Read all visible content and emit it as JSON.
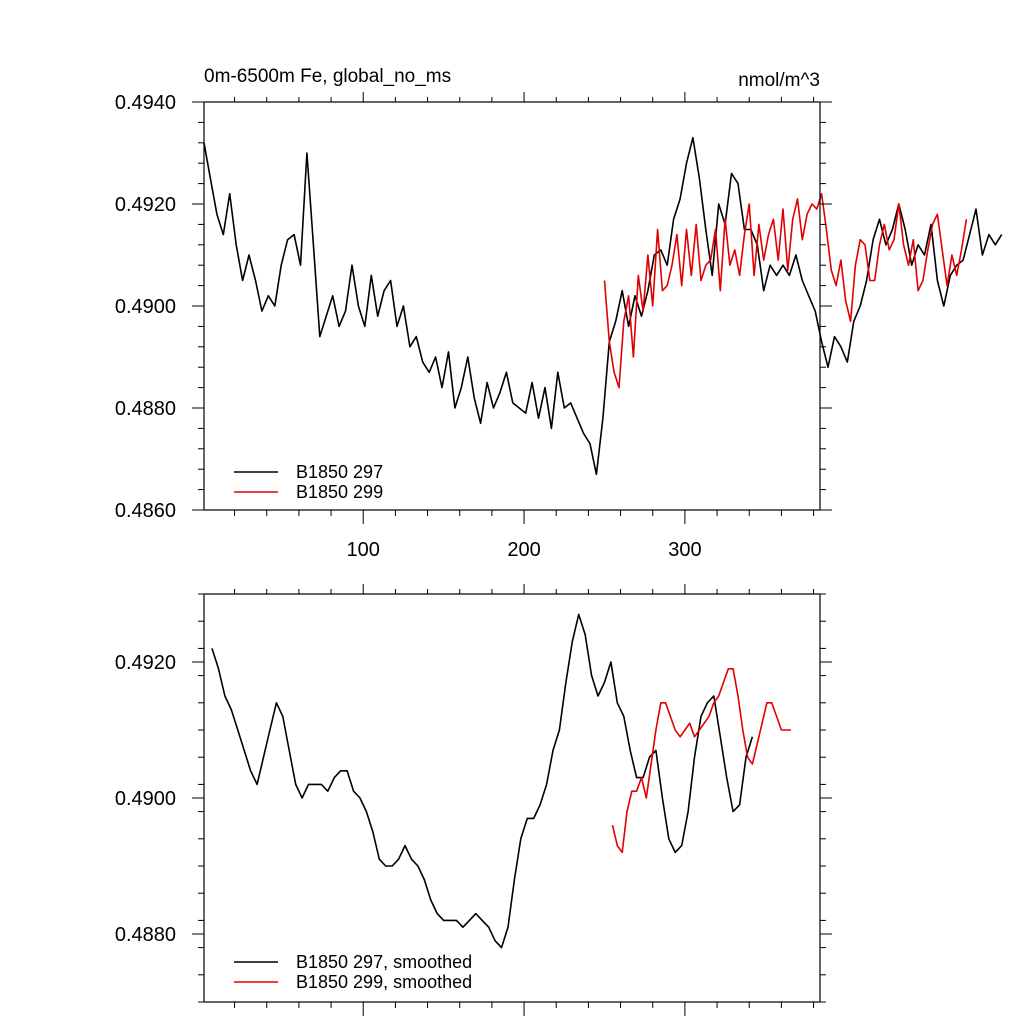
{
  "chart_data": [
    {
      "type": "line",
      "title": "0m-6500m Fe, global_no_ms",
      "units": "nmol/m^3",
      "xlim": [
        1,
        384
      ],
      "ylim": [
        0.486,
        0.494
      ],
      "x_tick_labels": [
        "100",
        "200",
        "300"
      ],
      "x_ticks": [
        100,
        200,
        300
      ],
      "y_tick_labels": [
        "0.4940",
        "0.4920",
        "0.4900",
        "0.4880",
        "0.4860"
      ],
      "y_ticks": [
        0.494,
        0.492,
        0.49,
        0.488,
        0.486
      ],
      "legend_position": "bottom-left",
      "series": [
        {
          "name": "B1850 297",
          "color": "#000000",
          "x_start": 1,
          "x_step": 4,
          "values": [
            0.4932,
            0.4925,
            0.4918,
            0.4914,
            0.4922,
            0.4912,
            0.4905,
            0.491,
            0.4905,
            0.4899,
            0.4902,
            0.49,
            0.4908,
            0.4913,
            0.4914,
            0.4908,
            0.493,
            0.4912,
            0.4894,
            0.4898,
            0.4902,
            0.4896,
            0.4899,
            0.4908,
            0.49,
            0.4896,
            0.4906,
            0.4898,
            0.4903,
            0.4905,
            0.4896,
            0.49,
            0.4892,
            0.4894,
            0.4889,
            0.4887,
            0.489,
            0.4884,
            0.4891,
            0.488,
            0.4884,
            0.489,
            0.4882,
            0.4877,
            0.4885,
            0.488,
            0.4883,
            0.4887,
            0.4881,
            0.488,
            0.4879,
            0.4885,
            0.4878,
            0.4884,
            0.4876,
            0.4887,
            0.488,
            0.4881,
            0.4878,
            0.4875,
            0.4873,
            0.4867,
            0.4878,
            0.4893,
            0.4897,
            0.4903,
            0.4896,
            0.4902,
            0.4898,
            0.4903,
            0.491,
            0.4911,
            0.4908,
            0.4917,
            0.4921,
            0.4928,
            0.4933,
            0.4925,
            0.4915,
            0.4906,
            0.492,
            0.4916,
            0.4926,
            0.4924,
            0.4915,
            0.4915,
            0.4912,
            0.4903,
            0.4908,
            0.4906,
            0.4908,
            0.4906,
            0.491,
            0.4905,
            0.4902,
            0.4899,
            0.4893,
            0.4888,
            0.4894,
            0.4892,
            0.4889,
            0.4897,
            0.49,
            0.4905,
            0.4913,
            0.4917,
            0.4912,
            0.4915,
            0.492,
            0.4915,
            0.4908,
            0.4912,
            0.491,
            0.4916,
            0.4905,
            0.49,
            0.4906,
            0.4908,
            0.4909,
            0.4914,
            0.4919,
            0.491,
            0.4914,
            0.4912,
            0.4914
          ]
        },
        {
          "name": "B1850 299",
          "color": "#e00000",
          "x_start": 250,
          "x_step": 3,
          "values": [
            0.4905,
            0.4893,
            0.4887,
            0.4884,
            0.4897,
            0.4902,
            0.489,
            0.4906,
            0.4899,
            0.491,
            0.49,
            0.4915,
            0.4903,
            0.4904,
            0.4908,
            0.4914,
            0.4904,
            0.4915,
            0.4906,
            0.4916,
            0.4905,
            0.4908,
            0.4909,
            0.4915,
            0.4903,
            0.4917,
            0.4908,
            0.4911,
            0.4906,
            0.4914,
            0.492,
            0.4906,
            0.4916,
            0.4909,
            0.4914,
            0.4917,
            0.4909,
            0.4919,
            0.4907,
            0.4917,
            0.4921,
            0.4913,
            0.4918,
            0.492,
            0.4919,
            0.4922,
            0.4915,
            0.4907,
            0.4904,
            0.4909,
            0.4901,
            0.4897,
            0.4908,
            0.4913,
            0.4912,
            0.4905,
            0.4905,
            0.4912,
            0.4916,
            0.4911,
            0.4913,
            0.492,
            0.4912,
            0.4908,
            0.4913,
            0.4903,
            0.4905,
            0.4911,
            0.4916,
            0.4918,
            0.4911,
            0.4904,
            0.491,
            0.4906,
            0.4911,
            0.4917
          ]
        }
      ]
    },
    {
      "type": "line",
      "xlim": [
        1,
        384
      ],
      "ylim": [
        0.487,
        0.493
      ],
      "x_ticks": [
        100,
        200,
        300
      ],
      "y_tick_labels": [
        "0.4920",
        "0.4900",
        "0.4880"
      ],
      "y_ticks": [
        0.492,
        0.49,
        0.488
      ],
      "legend_position": "bottom-left",
      "series": [
        {
          "name": "B1850 297, smoothed",
          "color": "#000000",
          "x_start": 6,
          "x_step": 4,
          "values": [
            0.4922,
            0.4919,
            0.4915,
            0.4913,
            0.491,
            0.4907,
            0.4904,
            0.4902,
            0.4906,
            0.491,
            0.4914,
            0.4912,
            0.4907,
            0.4902,
            0.49,
            0.4902,
            0.4902,
            0.4902,
            0.4901,
            0.4903,
            0.4904,
            0.4904,
            0.4901,
            0.49,
            0.4898,
            0.4895,
            0.4891,
            0.489,
            0.489,
            0.4891,
            0.4893,
            0.4891,
            0.489,
            0.4888,
            0.4885,
            0.4883,
            0.4882,
            0.4882,
            0.4882,
            0.4881,
            0.4882,
            0.4883,
            0.4882,
            0.4881,
            0.4879,
            0.4878,
            0.4881,
            0.4888,
            0.4894,
            0.4897,
            0.4897,
            0.4899,
            0.4902,
            0.4907,
            0.491,
            0.4917,
            0.4923,
            0.4927,
            0.4924,
            0.4918,
            0.4915,
            0.4917,
            0.492,
            0.4914,
            0.4912,
            0.4907,
            0.4903,
            0.4903,
            0.4906,
            0.4907,
            0.49,
            0.4894,
            0.4892,
            0.4893,
            0.4898,
            0.4906,
            0.4912,
            0.4914,
            0.4915,
            0.4909,
            0.4903,
            0.4898,
            0.4899,
            0.4906,
            0.4909
          ]
        },
        {
          "name": "B1850 299, smoothed",
          "color": "#e00000",
          "x_start": 255,
          "x_step": 3,
          "values": [
            0.4896,
            0.4893,
            0.4892,
            0.4898,
            0.4901,
            0.4901,
            0.4903,
            0.49,
            0.4905,
            0.491,
            0.4914,
            0.4914,
            0.4912,
            0.491,
            0.4909,
            0.491,
            0.4911,
            0.4909,
            0.491,
            0.4911,
            0.4912,
            0.4914,
            0.4915,
            0.4917,
            0.4919,
            0.4919,
            0.4915,
            0.491,
            0.4906,
            0.4905,
            0.4908,
            0.4911,
            0.4914,
            0.4914,
            0.4912,
            0.491,
            0.491,
            0.491
          ]
        }
      ]
    }
  ]
}
